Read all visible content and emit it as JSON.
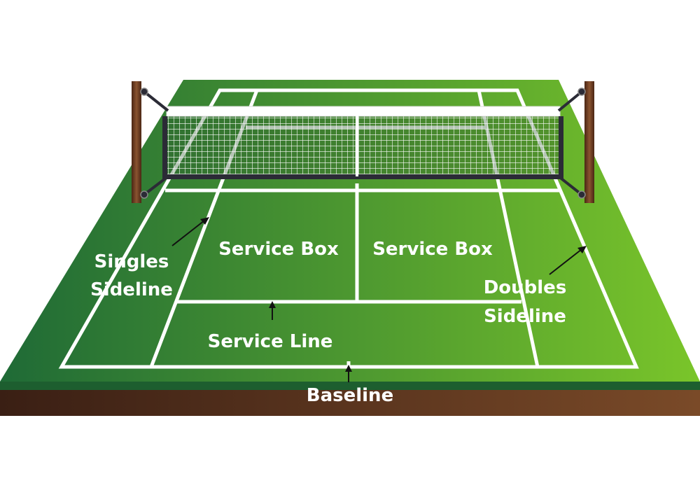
{
  "labels": {
    "service_box_left": "Service Box",
    "service_box_right": "Service Box",
    "singles_sideline_line1": "Singles",
    "singles_sideline_line2": "Sideline",
    "doubles_sideline_line1": "Doubles",
    "doubles_sideline_line2": "Sideline",
    "service_line": "Service Line",
    "baseline": "Baseline"
  },
  "colors": {
    "court_dark": "#1f6a36",
    "court_light": "#7ac52a",
    "soil_dark": "#3a1f14",
    "soil_light": "#7a4a28",
    "court_lines": "#ffffff",
    "net_band": "#2b2b36",
    "post": "#6b3b1f",
    "arrow": "#111111"
  }
}
